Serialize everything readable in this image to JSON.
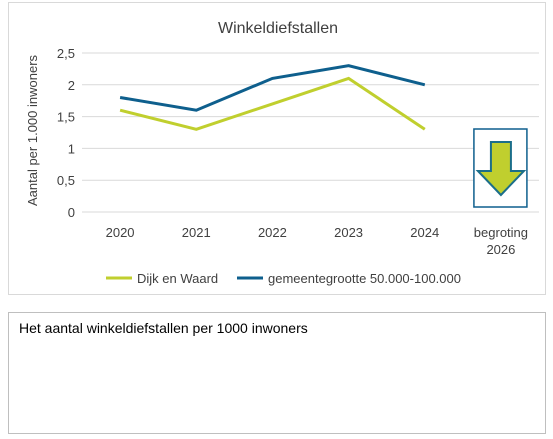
{
  "chart_data": {
    "type": "line",
    "title": "Winkeldiefstallen",
    "ylabel": "Aantal per 1.000 inwoners",
    "xlabel": "",
    "categories": [
      "2020",
      "2021",
      "2022",
      "2023",
      "2024",
      [
        "begroting",
        "2026"
      ]
    ],
    "yticks": [
      "0",
      "0,5",
      "1",
      "1,5",
      "2",
      "2,5"
    ],
    "ylim": [
      0,
      2.5
    ],
    "grid": true,
    "legend_position": "bottom",
    "series": [
      {
        "name": "Dijk en Waard",
        "color": "#c0cf2e",
        "values": [
          1.6,
          1.3,
          1.7,
          2.1,
          1.3,
          null
        ]
      },
      {
        "name": "gemeentegrootte 50.000-100.000",
        "color": "#0e5f8d",
        "values": [
          1.8,
          1.6,
          2.1,
          2.3,
          2.0,
          null
        ]
      }
    ],
    "annotation": {
      "type": "arrow-down-icon",
      "category": 5,
      "fill": "#c0cf2e",
      "stroke": "#1b6e8a",
      "frame": "#0e5f8d"
    }
  },
  "caption": "Het aantal winkeldiefstallen per 1000 inwoners"
}
